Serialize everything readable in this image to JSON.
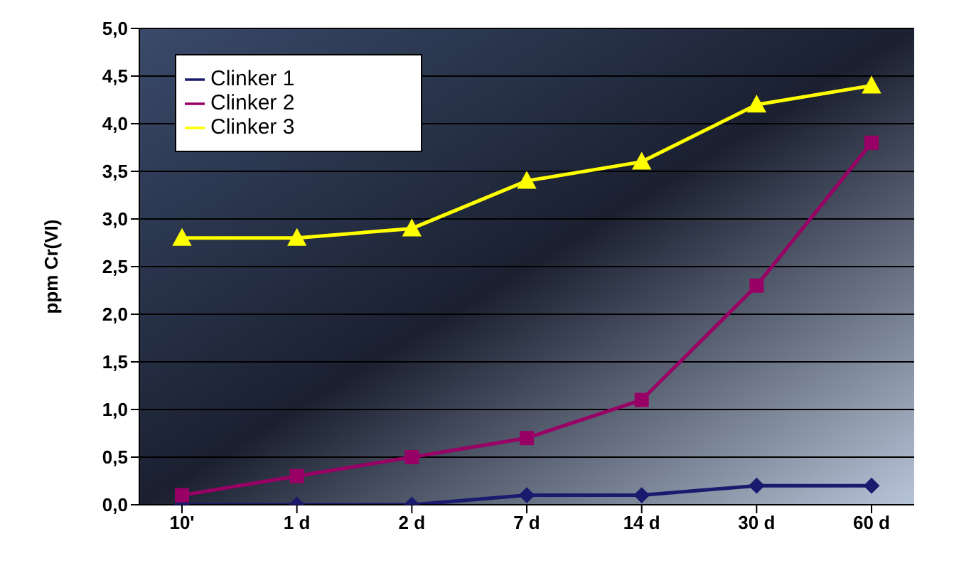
{
  "chart_data": {
    "type": "line",
    "ylabel": "ppm Cr(VI)",
    "categories": [
      "10'",
      "1 d",
      "2 d",
      "7 d",
      "14 d",
      "30 d",
      "60 d"
    ],
    "series": [
      {
        "name": "Clinker 1",
        "color": "#1a1a6e",
        "marker": "diamond",
        "values": [
          0,
          0,
          0,
          0.1,
          0.1,
          0.2,
          0.2
        ]
      },
      {
        "name": "Clinker 2",
        "color": "#990066",
        "marker": "square",
        "values": [
          0.1,
          0.3,
          0.5,
          0.7,
          1.1,
          2.3,
          3.8
        ]
      },
      {
        "name": "Clinker 3",
        "color": "#ffff00",
        "marker": "triangle",
        "values": [
          2.8,
          2.8,
          2.9,
          3.4,
          3.6,
          4.2,
          4.4
        ]
      }
    ],
    "ylim": [
      0,
      5
    ],
    "yticks": [
      {
        "value": 0,
        "label": "0,0"
      },
      {
        "value": 0.5,
        "label": "0,5"
      },
      {
        "value": 1,
        "label": "1,0"
      },
      {
        "value": 1.5,
        "label": "1,5"
      },
      {
        "value": 2,
        "label": "2,0"
      },
      {
        "value": 2.5,
        "label": "2,5"
      },
      {
        "value": 3,
        "label": "3,0"
      },
      {
        "value": 3.5,
        "label": "3,5"
      },
      {
        "value": 4,
        "label": "4,0"
      },
      {
        "value": 4.5,
        "label": "4,5"
      },
      {
        "value": 5,
        "label": "5,0"
      }
    ],
    "grid": "y",
    "legend": "top left",
    "line_style": "solid"
  }
}
